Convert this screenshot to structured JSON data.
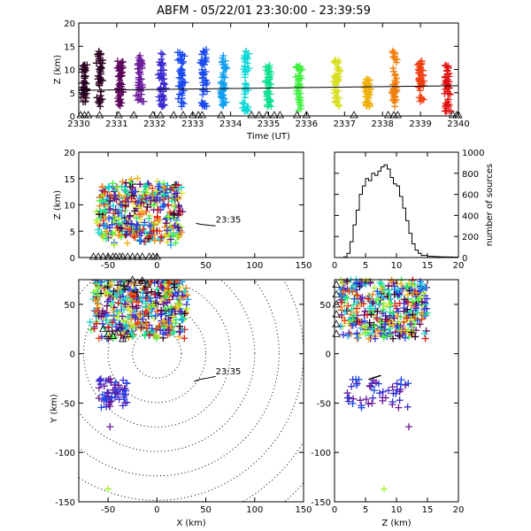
{
  "title": "ABFM - 05/22/01 23:30:00 - 23:39:59",
  "colors": {
    "time_palette": [
      "#2a0020",
      "#5a005a",
      "#6a1a9a",
      "#3a2ad0",
      "#1a4af0",
      "#10a0f0",
      "#10d8d8",
      "#10e090",
      "#40f040",
      "#a0f020",
      "#d8e020",
      "#f0b010",
      "#f08010",
      "#f04010",
      "#e01010"
    ],
    "track": "#000000",
    "rings": "#000000"
  },
  "chart_data": [
    {
      "id": "time_height",
      "type": "scatter",
      "title": "ABFM - 05/22/01 23:30:00 - 23:39:59",
      "xlabel": "Time (UT)",
      "ylabel": "Z (km)",
      "xlim": [
        2330,
        2340
      ],
      "ylim": [
        0,
        20
      ],
      "xticks": [
        "2330",
        "2331",
        "2332",
        "2333",
        "2334",
        "2335",
        "2336",
        "2337",
        "2338",
        "2339",
        "2340"
      ],
      "yticks": [
        "0",
        "5",
        "10",
        "15",
        "20"
      ],
      "clusters": [
        {
          "t": 2330.15,
          "z_min": 3,
          "z_max": 11
        },
        {
          "t": 2330.55,
          "z_min": 2,
          "z_max": 14
        },
        {
          "t": 2331.1,
          "z_min": 2,
          "z_max": 12
        },
        {
          "t": 2331.6,
          "z_min": 3,
          "z_max": 13
        },
        {
          "t": 2332.2,
          "z_min": 2,
          "z_max": 14
        },
        {
          "t": 2332.7,
          "z_min": 2,
          "z_max": 14
        },
        {
          "t": 2333.3,
          "z_min": 2,
          "z_max": 15
        },
        {
          "t": 2333.8,
          "z_min": 2,
          "z_max": 13
        },
        {
          "t": 2334.4,
          "z_min": 1,
          "z_max": 14
        },
        {
          "t": 2335.0,
          "z_min": 2,
          "z_max": 11
        },
        {
          "t": 2335.8,
          "z_min": 1,
          "z_max": 12
        },
        {
          "t": 2336.8,
          "z_min": 2,
          "z_max": 12
        },
        {
          "t": 2337.6,
          "z_min": 2,
          "z_max": 8
        },
        {
          "t": 2338.3,
          "z_min": 2,
          "z_max": 14
        },
        {
          "t": 2339.0,
          "z_min": 3,
          "z_max": 12
        },
        {
          "t": 2339.7,
          "z_min": 1,
          "z_max": 11
        }
      ],
      "track_line": {
        "t_start": 2330,
        "t_end": 2340,
        "z_start": 5.5,
        "z_end": 6.5
      },
      "triangle_times": [
        2330.05,
        2330.15,
        2330.25,
        2330.55,
        2331.05,
        2331.45,
        2331.95,
        2332.15,
        2332.5,
        2332.75,
        2333.0,
        2333.15,
        2333.25,
        2333.75,
        2334.55,
        2334.75,
        2334.95,
        2335.15,
        2335.3,
        2335.75,
        2336.0,
        2337.25,
        2338.15,
        2338.3,
        2338.4,
        2339.85,
        2339.95,
        2340.0
      ]
    },
    {
      "id": "xz_projection",
      "type": "scatter",
      "xlabel": "",
      "ylabel": "Z (km)",
      "xlim": [
        -80,
        150
      ],
      "ylim": [
        0,
        20
      ],
      "xticks": [
        "-50",
        "0",
        "50",
        "100",
        "150"
      ],
      "yticks": [
        "0",
        "5",
        "10",
        "15",
        "20"
      ],
      "cluster_x_range": [
        -65,
        30
      ],
      "cluster_z_range": [
        2,
        16
      ],
      "track": {
        "x": [
          40,
          45,
          50,
          55,
          60
        ],
        "z": [
          6.5,
          6.3,
          6.2,
          6.1,
          6.0
        ]
      },
      "track_label": "23:35"
    },
    {
      "id": "z_histogram",
      "type": "line",
      "xlabel": "",
      "ylabel": "number of sources",
      "xlim": [
        0,
        20
      ],
      "ylim": [
        0,
        1000
      ],
      "xticks": [
        "0",
        "5",
        "10",
        "15",
        "20"
      ],
      "yticks": [
        "0",
        "200",
        "400",
        "600",
        "800",
        "1000"
      ],
      "x": [
        1,
        1.5,
        2,
        2.5,
        3,
        3.5,
        4,
        4.5,
        5,
        5.5,
        6,
        6.5,
        7,
        7.5,
        8,
        8.5,
        9,
        9.5,
        10,
        10.5,
        11,
        11.5,
        12,
        12.5,
        13,
        13.5,
        14,
        15,
        16,
        17,
        18,
        19,
        20
      ],
      "values": [
        0,
        5,
        40,
        150,
        310,
        450,
        600,
        680,
        750,
        730,
        800,
        780,
        820,
        860,
        880,
        840,
        760,
        700,
        680,
        580,
        470,
        350,
        230,
        130,
        70,
        40,
        20,
        12,
        8,
        6,
        5,
        4,
        3
      ]
    },
    {
      "id": "plan_view",
      "type": "scatter",
      "xlabel": "X (km)",
      "ylabel": "Y (km)",
      "xlim": [
        -80,
        150
      ],
      "ylim": [
        -150,
        75
      ],
      "xticks": [
        "-50",
        "0",
        "50",
        "100",
        "150"
      ],
      "yticks": [
        "-150",
        "-100",
        "-50",
        "0",
        "50"
      ],
      "range_rings_km": [
        25,
        50,
        75,
        100,
        125,
        150,
        175,
        200
      ],
      "cluster_north": {
        "x_range": [
          -65,
          30
        ],
        "y_range": [
          15,
          75
        ]
      },
      "cluster_south": {
        "x_range": [
          -60,
          -30
        ],
        "y_range": [
          -55,
          -25
        ]
      },
      "outliers": [
        {
          "x": -50,
          "y": -137
        },
        {
          "x": -48,
          "y": -74
        }
      ],
      "track": {
        "x": [
          38,
          44,
          50,
          55,
          60
        ],
        "y": [
          -28,
          -26,
          -25,
          -24,
          -23
        ]
      },
      "track_label": "23:35"
    },
    {
      "id": "zy_projection",
      "type": "scatter",
      "xlabel": "Z (km)",
      "ylabel": "",
      "xlim": [
        0,
        20
      ],
      "ylim": [
        -150,
        75
      ],
      "xticks": [
        "0",
        "5",
        "10",
        "15",
        "20"
      ],
      "yticks": [
        "-150",
        "-100",
        "-50",
        "0",
        "50"
      ],
      "cluster_north": {
        "z_range": [
          0,
          16
        ],
        "y_range": [
          15,
          75
        ]
      },
      "cluster_south": {
        "z_range": [
          2,
          12
        ],
        "y_range": [
          -55,
          -25
        ]
      },
      "outliers": [
        {
          "z": 8,
          "y": -137
        },
        {
          "z": 12,
          "y": -74
        }
      ],
      "track": {
        "z": [
          5.5,
          6,
          6.5,
          7,
          7.5
        ],
        "y": [
          -26,
          -25,
          -24,
          -23,
          -22
        ]
      }
    }
  ]
}
